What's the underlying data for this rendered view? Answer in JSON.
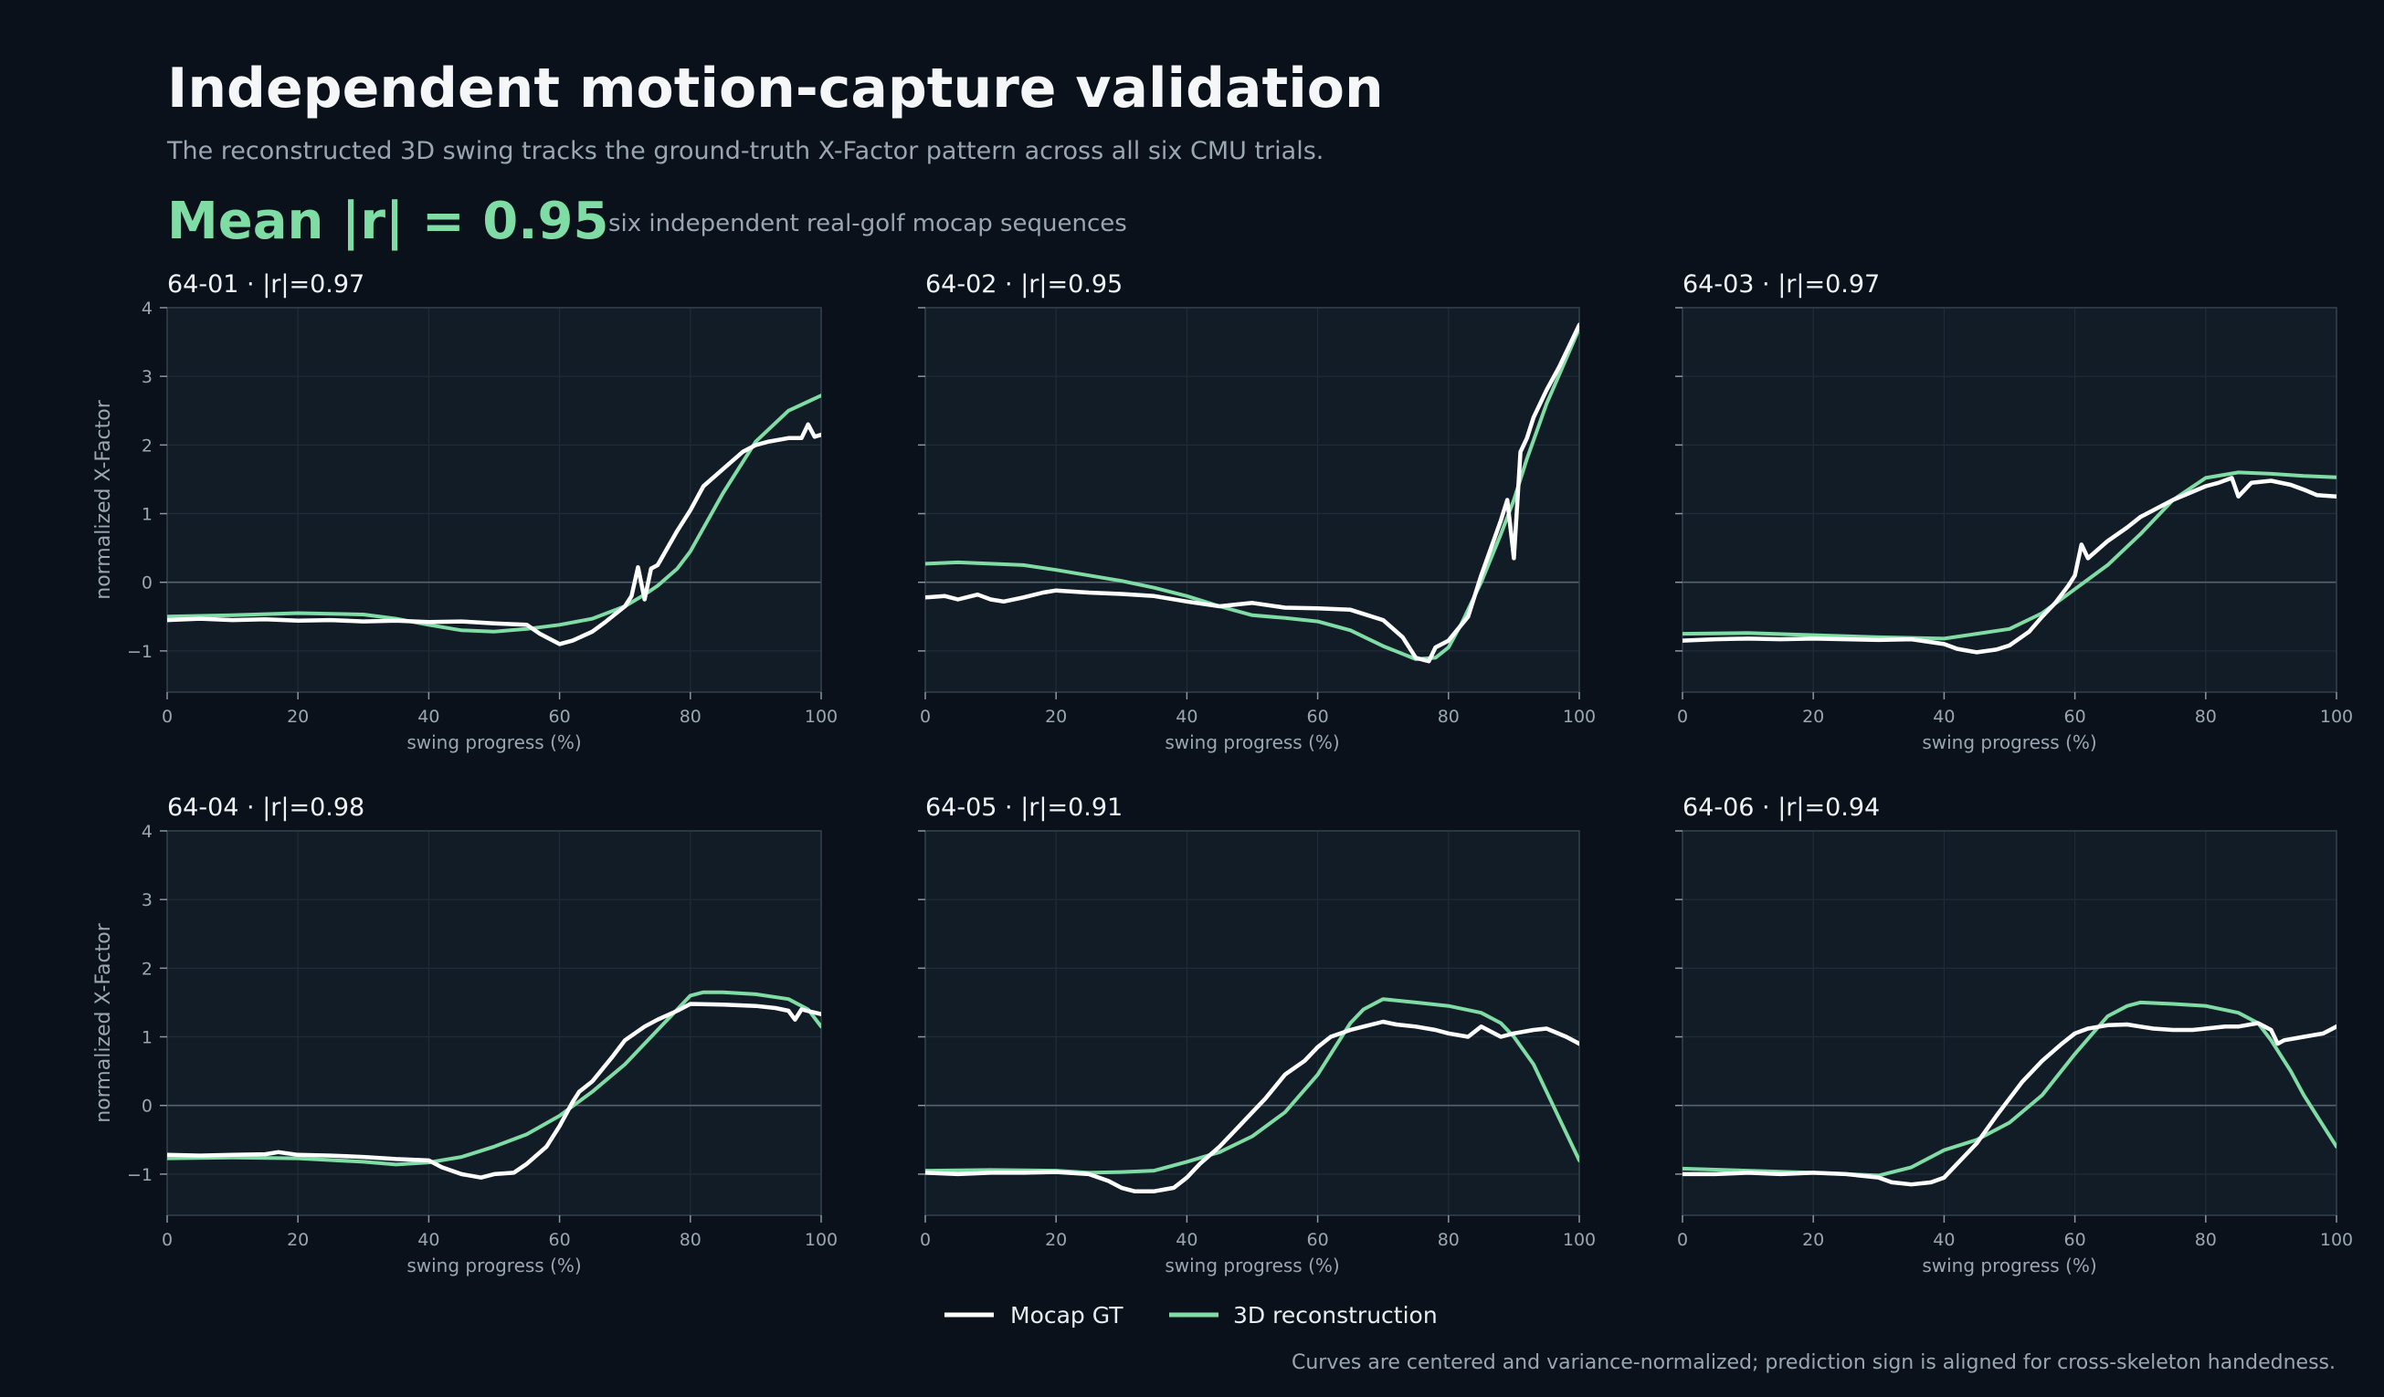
{
  "header": {
    "title": "Independent motion-capture validation",
    "subtitle": "The reconstructed 3D swing tracks the ground-truth X-Factor pattern across all six CMU trials.",
    "metric": "Mean |r| = 0.95",
    "metric_note": "six independent real-golf mocap sequences"
  },
  "footnote": "Curves are centered and variance-normalized; prediction sign is aligned for cross-skeleton handedness.",
  "colors": {
    "background": "#0a111a",
    "panel": "#111c26",
    "gt": "#ffffff",
    "reconstruction": "#7fdca4",
    "accent": "#7fdca4"
  },
  "chart_data": {
    "type": "line",
    "xlabel": "swing progress (%)",
    "ylabel": "normalized X-Factor",
    "xlim": [
      0,
      100
    ],
    "ylim": [
      -1.6,
      4.0
    ],
    "xticks": [
      0,
      20,
      40,
      60,
      80,
      100
    ],
    "yticks": [
      -1,
      0,
      1,
      2,
      3,
      4
    ],
    "ytick_labels": [
      "−1",
      "0",
      "1",
      "2",
      "3",
      "4"
    ],
    "grid": true,
    "legend": {
      "placement": "bottom-center",
      "entries": [
        "Mocap GT",
        "3D reconstruction"
      ]
    },
    "panels": [
      {
        "label": "64-01  ·  |r|=0.97",
        "series": [
          {
            "name": "Mocap GT",
            "x": [
              0,
              5,
              10,
              15,
              20,
              25,
              30,
              35,
              40,
              45,
              50,
              55,
              57,
              60,
              62,
              65,
              67,
              70,
              71,
              72,
              73,
              74,
              75,
              78,
              80,
              82,
              85,
              88,
              90,
              92,
              95,
              97,
              98,
              99,
              100
            ],
            "y": [
              -0.55,
              -0.53,
              -0.55,
              -0.54,
              -0.56,
              -0.55,
              -0.57,
              -0.56,
              -0.58,
              -0.57,
              -0.6,
              -0.62,
              -0.75,
              -0.9,
              -0.85,
              -0.72,
              -0.58,
              -0.35,
              -0.2,
              0.22,
              -0.25,
              0.2,
              0.25,
              0.75,
              1.05,
              1.4,
              1.65,
              1.9,
              2.0,
              2.05,
              2.1,
              2.1,
              2.3,
              2.12,
              2.15
            ]
          },
          {
            "name": "3D reconstruction",
            "x": [
              0,
              10,
              20,
              30,
              35,
              40,
              45,
              50,
              55,
              60,
              65,
              70,
              73,
              75,
              78,
              80,
              85,
              90,
              95,
              100
            ],
            "y": [
              -0.5,
              -0.48,
              -0.45,
              -0.47,
              -0.53,
              -0.62,
              -0.7,
              -0.72,
              -0.68,
              -0.62,
              -0.53,
              -0.35,
              -0.18,
              -0.05,
              0.2,
              0.45,
              1.3,
              2.05,
              2.5,
              2.72
            ]
          }
        ]
      },
      {
        "label": "64-02  ·  |r|=0.95",
        "series": [
          {
            "name": "Mocap GT",
            "x": [
              0,
              3,
              5,
              8,
              10,
              12,
              15,
              18,
              20,
              25,
              30,
              35,
              40,
              45,
              50,
              55,
              60,
              65,
              70,
              73,
              75,
              77,
              78,
              80,
              83,
              85,
              88,
              89,
              90,
              91,
              92,
              93,
              95,
              97,
              100
            ],
            "y": [
              -0.22,
              -0.2,
              -0.25,
              -0.18,
              -0.25,
              -0.28,
              -0.22,
              -0.15,
              -0.12,
              -0.15,
              -0.17,
              -0.2,
              -0.28,
              -0.35,
              -0.3,
              -0.37,
              -0.38,
              -0.4,
              -0.55,
              -0.8,
              -1.1,
              -1.15,
              -0.95,
              -0.85,
              -0.5,
              0.1,
              0.9,
              1.2,
              0.35,
              1.9,
              2.1,
              2.4,
              2.8,
              3.15,
              3.75
            ]
          },
          {
            "name": "3D reconstruction",
            "x": [
              0,
              5,
              10,
              15,
              20,
              25,
              30,
              35,
              40,
              45,
              50,
              55,
              60,
              65,
              70,
              75,
              78,
              80,
              82,
              85,
              88,
              90,
              92,
              95,
              100
            ],
            "y": [
              0.27,
              0.29,
              0.27,
              0.25,
              0.18,
              0.1,
              0.02,
              -0.08,
              -0.2,
              -0.35,
              -0.48,
              -0.52,
              -0.57,
              -0.7,
              -0.93,
              -1.12,
              -1.1,
              -0.95,
              -0.6,
              0.0,
              0.7,
              1.2,
              1.8,
              2.6,
              3.7
            ]
          }
        ]
      },
      {
        "label": "64-03  ·  |r|=0.97",
        "series": [
          {
            "name": "Mocap GT",
            "x": [
              0,
              5,
              10,
              15,
              20,
              25,
              30,
              35,
              40,
              42,
              45,
              48,
              50,
              53,
              55,
              57,
              59,
              60,
              61,
              62,
              65,
              68,
              70,
              73,
              75,
              78,
              80,
              82,
              84,
              85,
              87,
              90,
              93,
              95,
              97,
              100
            ],
            "y": [
              -0.85,
              -0.83,
              -0.82,
              -0.83,
              -0.82,
              -0.83,
              -0.84,
              -0.83,
              -0.9,
              -0.97,
              -1.02,
              -0.98,
              -0.92,
              -0.72,
              -0.5,
              -0.3,
              -0.05,
              0.1,
              0.55,
              0.35,
              0.6,
              0.8,
              0.95,
              1.1,
              1.2,
              1.32,
              1.4,
              1.45,
              1.52,
              1.25,
              1.45,
              1.48,
              1.42,
              1.35,
              1.27,
              1.25
            ]
          },
          {
            "name": "3D reconstruction",
            "x": [
              0,
              10,
              20,
              30,
              40,
              45,
              50,
              55,
              60,
              65,
              70,
              75,
              80,
              85,
              90,
              95,
              100
            ],
            "y": [
              -0.75,
              -0.74,
              -0.77,
              -0.8,
              -0.82,
              -0.75,
              -0.68,
              -0.45,
              -0.1,
              0.25,
              0.7,
              1.2,
              1.52,
              1.6,
              1.58,
              1.55,
              1.53
            ]
          }
        ]
      },
      {
        "label": "64-04  ·  |r|=0.98",
        "series": [
          {
            "name": "Mocap GT",
            "x": [
              0,
              5,
              10,
              15,
              17,
              20,
              25,
              30,
              35,
              40,
              42,
              45,
              48,
              50,
              53,
              55,
              58,
              60,
              62,
              63,
              65,
              68,
              70,
              73,
              75,
              78,
              80,
              85,
              90,
              93,
              95,
              96,
              97,
              100
            ],
            "y": [
              -0.72,
              -0.73,
              -0.72,
              -0.71,
              -0.68,
              -0.72,
              -0.73,
              -0.75,
              -0.78,
              -0.8,
              -0.9,
              -1.0,
              -1.05,
              -1.0,
              -0.98,
              -0.85,
              -0.6,
              -0.3,
              0.05,
              0.2,
              0.35,
              0.7,
              0.95,
              1.15,
              1.25,
              1.38,
              1.48,
              1.47,
              1.45,
              1.42,
              1.38,
              1.25,
              1.4,
              1.33
            ]
          },
          {
            "name": "3D reconstruction",
            "x": [
              0,
              10,
              20,
              30,
              35,
              40,
              45,
              50,
              55,
              60,
              65,
              70,
              75,
              78,
              80,
              82,
              85,
              90,
              95,
              98,
              100
            ],
            "y": [
              -0.77,
              -0.76,
              -0.77,
              -0.82,
              -0.86,
              -0.83,
              -0.75,
              -0.6,
              -0.42,
              -0.15,
              0.2,
              0.6,
              1.1,
              1.4,
              1.6,
              1.65,
              1.65,
              1.62,
              1.55,
              1.4,
              1.15
            ]
          }
        ]
      },
      {
        "label": "64-05  ·  |r|=0.91",
        "series": [
          {
            "name": "Mocap GT",
            "x": [
              0,
              5,
              10,
              15,
              20,
              25,
              28,
              30,
              32,
              35,
              38,
              40,
              42,
              45,
              48,
              50,
              52,
              55,
              58,
              60,
              62,
              65,
              67,
              70,
              72,
              75,
              78,
              80,
              83,
              85,
              88,
              90,
              93,
              95,
              98,
              100
            ],
            "y": [
              -0.98,
              -1.0,
              -0.98,
              -0.98,
              -0.97,
              -1.0,
              -1.1,
              -1.2,
              -1.25,
              -1.25,
              -1.2,
              -1.05,
              -0.85,
              -0.6,
              -0.3,
              -0.1,
              0.1,
              0.45,
              0.65,
              0.85,
              1.0,
              1.1,
              1.15,
              1.22,
              1.18,
              1.15,
              1.1,
              1.05,
              1.0,
              1.15,
              1.0,
              1.05,
              1.1,
              1.12,
              1.0,
              0.9
            ]
          },
          {
            "name": "3D reconstruction",
            "x": [
              0,
              10,
              20,
              25,
              30,
              35,
              40,
              45,
              50,
              55,
              60,
              65,
              67,
              70,
              75,
              80,
              85,
              88,
              90,
              93,
              95,
              97,
              100
            ],
            "y": [
              -0.95,
              -0.94,
              -0.95,
              -0.98,
              -0.97,
              -0.95,
              -0.82,
              -0.68,
              -0.45,
              -0.1,
              0.45,
              1.2,
              1.4,
              1.55,
              1.5,
              1.45,
              1.35,
              1.2,
              1.0,
              0.6,
              0.2,
              -0.2,
              -0.8
            ]
          }
        ]
      },
      {
        "label": "64-06  ·  |r|=0.94",
        "series": [
          {
            "name": "Mocap GT",
            "x": [
              0,
              5,
              10,
              15,
              20,
              25,
              30,
              32,
              35,
              38,
              40,
              42,
              45,
              48,
              50,
              52,
              55,
              58,
              60,
              62,
              65,
              68,
              70,
              72,
              75,
              78,
              80,
              83,
              85,
              88,
              90,
              91,
              92,
              95,
              98,
              100
            ],
            "y": [
              -1.0,
              -1.0,
              -0.98,
              -1.0,
              -0.98,
              -1.0,
              -1.05,
              -1.12,
              -1.15,
              -1.12,
              -1.05,
              -0.85,
              -0.55,
              -0.15,
              0.1,
              0.35,
              0.65,
              0.9,
              1.05,
              1.12,
              1.17,
              1.18,
              1.15,
              1.12,
              1.1,
              1.1,
              1.12,
              1.15,
              1.15,
              1.2,
              1.1,
              0.9,
              0.95,
              1.0,
              1.05,
              1.15
            ]
          },
          {
            "name": "3D reconstruction",
            "x": [
              0,
              10,
              20,
              25,
              30,
              35,
              40,
              45,
              50,
              55,
              60,
              65,
              68,
              70,
              75,
              80,
              85,
              88,
              90,
              93,
              95,
              97,
              100
            ],
            "y": [
              -0.92,
              -0.95,
              -0.98,
              -1.0,
              -1.02,
              -0.9,
              -0.65,
              -0.5,
              -0.25,
              0.15,
              0.75,
              1.3,
              1.45,
              1.5,
              1.48,
              1.45,
              1.35,
              1.2,
              0.95,
              0.5,
              0.15,
              -0.15,
              -0.6
            ]
          }
        ]
      }
    ]
  }
}
